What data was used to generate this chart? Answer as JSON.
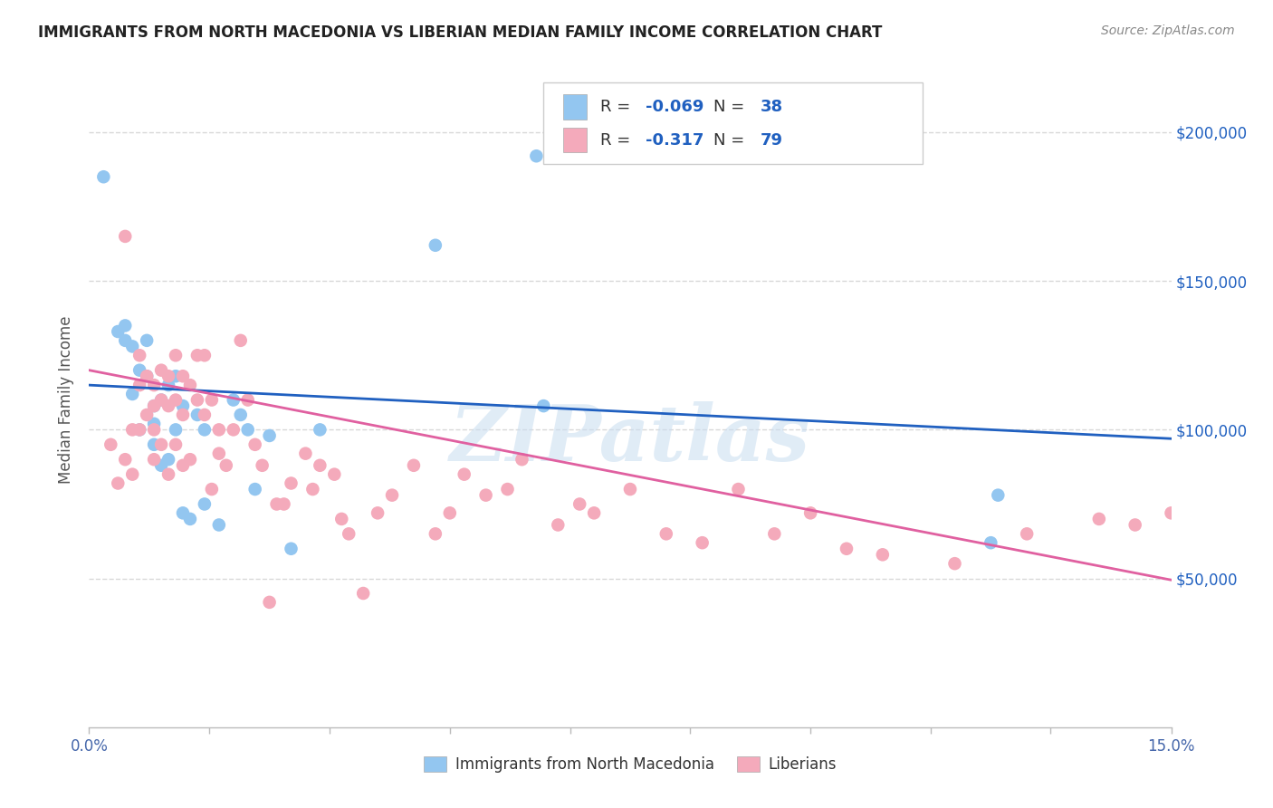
{
  "title": "IMMIGRANTS FROM NORTH MACEDONIA VS LIBERIAN MEDIAN FAMILY INCOME CORRELATION CHART",
  "source": "Source: ZipAtlas.com",
  "ylabel": "Median Family Income",
  "yticks": [
    0,
    50000,
    100000,
    150000,
    200000
  ],
  "ytick_labels": [
    "",
    "$50,000",
    "$100,000",
    "$150,000",
    "$200,000"
  ],
  "xlim": [
    0.0,
    0.15
  ],
  "ylim": [
    0,
    220000
  ],
  "legend_bottom1": "Immigrants from North Macedonia",
  "legend_bottom2": "Liberians",
  "blue_color": "#93C6F0",
  "pink_color": "#F4AABB",
  "blue_line_color": "#2060C0",
  "pink_line_color": "#E060A0",
  "R_text_color": "#2060C0",
  "N_text_color": "#2060C0",
  "blue_R": -0.069,
  "blue_N": 38,
  "pink_R": -0.317,
  "pink_N": 79,
  "blue_scatter_x": [
    0.002,
    0.004,
    0.005,
    0.005,
    0.006,
    0.006,
    0.007,
    0.007,
    0.008,
    0.008,
    0.009,
    0.009,
    0.009,
    0.01,
    0.01,
    0.011,
    0.011,
    0.012,
    0.012,
    0.013,
    0.013,
    0.014,
    0.015,
    0.016,
    0.016,
    0.018,
    0.02,
    0.021,
    0.022,
    0.023,
    0.025,
    0.028,
    0.032,
    0.048,
    0.062,
    0.063,
    0.125,
    0.126
  ],
  "blue_scatter_y": [
    185000,
    133000,
    135000,
    130000,
    128000,
    112000,
    120000,
    100000,
    130000,
    118000,
    108000,
    102000,
    95000,
    110000,
    88000,
    115000,
    90000,
    118000,
    100000,
    108000,
    72000,
    70000,
    105000,
    100000,
    75000,
    68000,
    110000,
    105000,
    100000,
    80000,
    98000,
    60000,
    100000,
    162000,
    192000,
    108000,
    62000,
    78000
  ],
  "pink_scatter_x": [
    0.003,
    0.004,
    0.005,
    0.005,
    0.006,
    0.006,
    0.007,
    0.007,
    0.007,
    0.008,
    0.008,
    0.009,
    0.009,
    0.009,
    0.009,
    0.01,
    0.01,
    0.01,
    0.011,
    0.011,
    0.011,
    0.012,
    0.012,
    0.012,
    0.013,
    0.013,
    0.013,
    0.014,
    0.014,
    0.015,
    0.015,
    0.016,
    0.016,
    0.017,
    0.017,
    0.018,
    0.018,
    0.019,
    0.02,
    0.021,
    0.022,
    0.023,
    0.024,
    0.025,
    0.026,
    0.027,
    0.028,
    0.03,
    0.031,
    0.032,
    0.034,
    0.035,
    0.036,
    0.038,
    0.04,
    0.042,
    0.045,
    0.048,
    0.05,
    0.052,
    0.055,
    0.058,
    0.06,
    0.065,
    0.068,
    0.07,
    0.075,
    0.08,
    0.085,
    0.09,
    0.095,
    0.1,
    0.105,
    0.11,
    0.12,
    0.13,
    0.14,
    0.145,
    0.15
  ],
  "pink_scatter_y": [
    95000,
    82000,
    165000,
    90000,
    100000,
    85000,
    125000,
    115000,
    100000,
    118000,
    105000,
    115000,
    108000,
    100000,
    90000,
    120000,
    110000,
    95000,
    118000,
    108000,
    85000,
    125000,
    110000,
    95000,
    118000,
    105000,
    88000,
    115000,
    90000,
    125000,
    110000,
    125000,
    105000,
    110000,
    80000,
    100000,
    92000,
    88000,
    100000,
    130000,
    110000,
    95000,
    88000,
    42000,
    75000,
    75000,
    82000,
    92000,
    80000,
    88000,
    85000,
    70000,
    65000,
    45000,
    72000,
    78000,
    88000,
    65000,
    72000,
    85000,
    78000,
    80000,
    90000,
    68000,
    75000,
    72000,
    80000,
    65000,
    62000,
    80000,
    65000,
    72000,
    60000,
    58000,
    55000,
    65000,
    70000,
    68000,
    72000
  ],
  "watermark": "ZIPatlas",
  "background_color": "#ffffff",
  "grid_color": "#d8d8d8",
  "blue_line_intercept": 115000,
  "blue_line_slope": -120000,
  "pink_line_intercept": 120000,
  "pink_line_slope": -470000
}
